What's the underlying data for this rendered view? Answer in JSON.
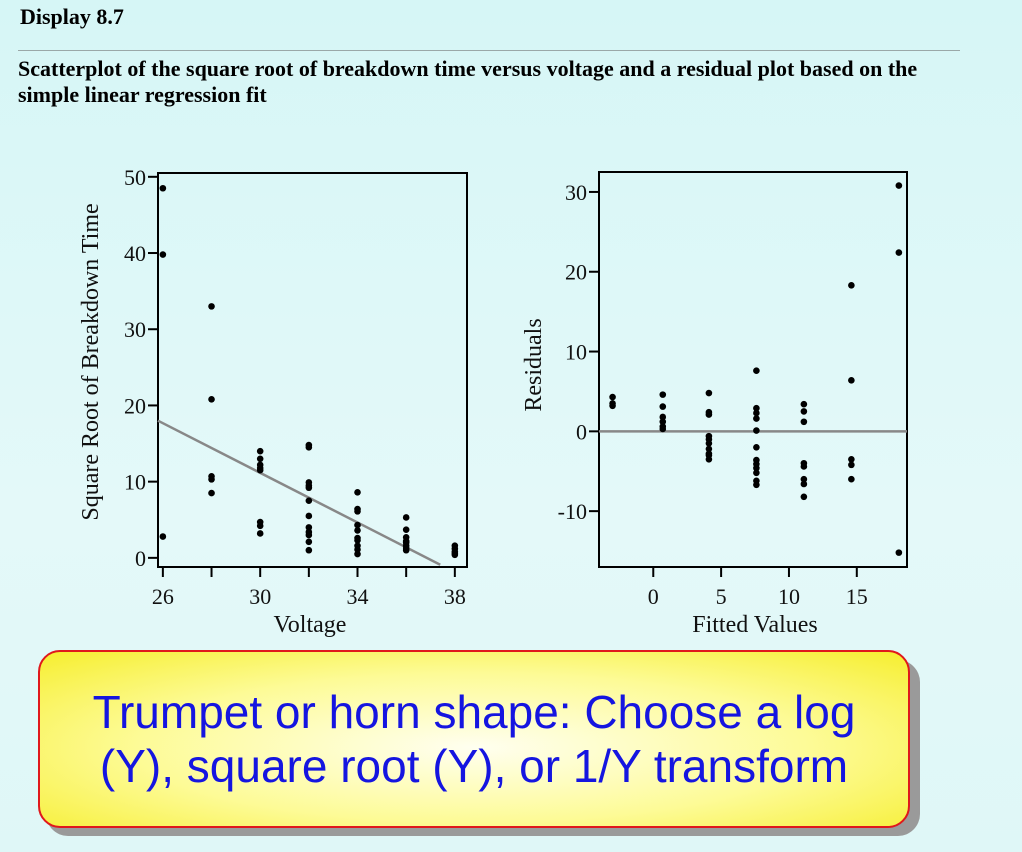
{
  "header": {
    "display_label": "Display 8.7",
    "caption": "Scatterplot of the square root of breakdown time versus voltage and a residual plot based on the simple linear regression fit"
  },
  "callout": {
    "text": "Trumpet or horn shape: Choose a log (Y), square root (Y), or 1/Y transform"
  },
  "colors": {
    "background": "#d6f6f6",
    "points": "#000000",
    "fit_line": "#888888",
    "callout_text": "#1515e0",
    "callout_border": "#e0181c",
    "callout_fill": "#fdfb96"
  },
  "chart_data": [
    {
      "type": "scatter",
      "xlabel": "Voltage",
      "ylabel": "Square Root of Breakdown Time",
      "xlim": [
        25.8,
        38.5
      ],
      "ylim": [
        -1.2,
        50.5
      ],
      "xticks": [
        26,
        30,
        34,
        38
      ],
      "xticks_minor": [
        28,
        32,
        36
      ],
      "yticks": [
        0,
        10,
        20,
        30,
        40,
        50
      ],
      "grid": false,
      "points": [
        [
          26,
          48.5
        ],
        [
          26,
          39.8
        ],
        [
          26,
          2.8
        ],
        [
          28,
          33.0
        ],
        [
          28,
          20.8
        ],
        [
          28,
          10.7
        ],
        [
          28,
          10.3
        ],
        [
          28,
          8.5
        ],
        [
          30,
          14.0
        ],
        [
          30,
          13.0
        ],
        [
          30,
          12.2
        ],
        [
          30,
          11.8
        ],
        [
          30,
          11.5
        ],
        [
          30,
          4.7
        ],
        [
          30,
          4.2
        ],
        [
          30,
          3.2
        ],
        [
          32,
          14.8
        ],
        [
          32,
          14.5
        ],
        [
          32,
          9.9
        ],
        [
          32,
          9.5
        ],
        [
          32,
          9.2
        ],
        [
          32,
          7.5
        ],
        [
          32,
          5.5
        ],
        [
          32,
          4.0
        ],
        [
          32,
          3.4
        ],
        [
          32,
          3.0
        ],
        [
          32,
          2.1
        ],
        [
          32,
          1.0
        ],
        [
          34,
          8.6
        ],
        [
          34,
          6.4
        ],
        [
          34,
          6.1
        ],
        [
          34,
          4.3
        ],
        [
          34,
          3.6
        ],
        [
          34,
          2.6
        ],
        [
          34,
          2.3
        ],
        [
          34,
          1.6
        ],
        [
          34,
          1.1
        ],
        [
          34,
          0.5
        ],
        [
          36,
          5.3
        ],
        [
          36,
          3.7
        ],
        [
          36,
          2.7
        ],
        [
          36,
          2.2
        ],
        [
          36,
          2.0
        ],
        [
          36,
          1.6
        ],
        [
          36,
          1.3
        ],
        [
          36,
          1.0
        ],
        [
          38,
          1.6
        ],
        [
          38,
          1.2
        ],
        [
          38,
          0.8
        ],
        [
          38,
          0.6
        ],
        [
          38,
          0.4
        ]
      ],
      "fit_line": {
        "x": [
          25.8,
          37.4
        ],
        "y": [
          18.0,
          -0.9
        ]
      }
    },
    {
      "type": "scatter",
      "xlabel": "Fitted Values",
      "ylabel": "Residuals",
      "xlim": [
        -4,
        18.7
      ],
      "ylim": [
        -17,
        32.5
      ],
      "xticks": [
        0,
        5,
        10,
        15
      ],
      "yticks": [
        -10,
        0,
        10,
        20,
        30
      ],
      "grid": false,
      "points": [
        [
          -3,
          4.3
        ],
        [
          -3,
          3.5
        ],
        [
          -3,
          3.2
        ],
        [
          0.7,
          4.6
        ],
        [
          0.7,
          3.1
        ],
        [
          0.7,
          1.8
        ],
        [
          0.7,
          1.2
        ],
        [
          0.7,
          0.6
        ],
        [
          0.7,
          0.3
        ],
        [
          4.1,
          4.8
        ],
        [
          4.1,
          2.4
        ],
        [
          4.1,
          2.1
        ],
        [
          4.1,
          -0.6
        ],
        [
          4.1,
          -1.0
        ],
        [
          4.1,
          -1.5
        ],
        [
          4.1,
          -2.2
        ],
        [
          4.1,
          -2.8
        ],
        [
          4.1,
          -3.0
        ],
        [
          4.1,
          -3.5
        ],
        [
          7.6,
          7.6
        ],
        [
          7.6,
          2.9
        ],
        [
          7.6,
          2.3
        ],
        [
          7.6,
          1.6
        ],
        [
          7.6,
          0.1
        ],
        [
          7.6,
          -2.0
        ],
        [
          7.6,
          -3.6
        ],
        [
          7.6,
          -4.1
        ],
        [
          7.6,
          -4.6
        ],
        [
          7.6,
          -5.2
        ],
        [
          7.6,
          -6.2
        ],
        [
          7.6,
          -6.7
        ],
        [
          11.1,
          3.4
        ],
        [
          11.1,
          2.5
        ],
        [
          11.1,
          1.2
        ],
        [
          11.1,
          -4.0
        ],
        [
          11.1,
          -4.4
        ],
        [
          11.1,
          -6.0
        ],
        [
          11.1,
          -6.6
        ],
        [
          11.1,
          -8.2
        ],
        [
          14.6,
          18.3
        ],
        [
          14.6,
          6.4
        ],
        [
          14.6,
          -3.5
        ],
        [
          14.6,
          -4.2
        ],
        [
          14.6,
          -6.0
        ],
        [
          18.1,
          30.8
        ],
        [
          18.1,
          22.4
        ],
        [
          18.1,
          -15.2
        ]
      ],
      "ref_line": {
        "y": 0
      }
    }
  ]
}
